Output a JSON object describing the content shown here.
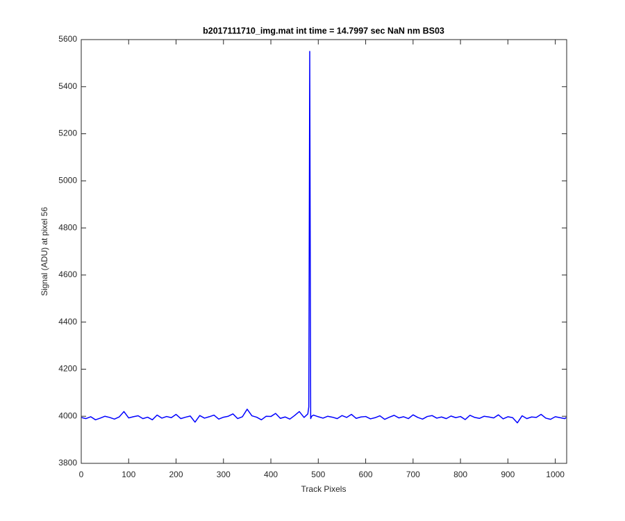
{
  "chart_data": {
    "type": "line",
    "title": "b2017111710_img.mat int time = 14.7997 sec  NaN nm BS03",
    "x_label": "Track Pixels",
    "y_label": "Signal (ADU) at pixel 56",
    "x": [
      0,
      10,
      20,
      30,
      40,
      50,
      60,
      70,
      80,
      90,
      100,
      110,
      120,
      130,
      140,
      150,
      160,
      170,
      180,
      190,
      200,
      210,
      220,
      230,
      240,
      250,
      260,
      270,
      280,
      290,
      300,
      310,
      320,
      330,
      340,
      350,
      360,
      370,
      380,
      390,
      400,
      410,
      420,
      430,
      440,
      450,
      460,
      470,
      478,
      480,
      482,
      484,
      486,
      490,
      500,
      510,
      520,
      530,
      540,
      550,
      560,
      570,
      580,
      590,
      600,
      610,
      620,
      630,
      640,
      650,
      660,
      670,
      680,
      690,
      700,
      710,
      720,
      730,
      740,
      750,
      760,
      770,
      780,
      790,
      800,
      810,
      820,
      830,
      840,
      850,
      860,
      870,
      880,
      890,
      900,
      910,
      920,
      930,
      940,
      950,
      960,
      970,
      980,
      990,
      1000,
      1010,
      1020,
      1023
    ],
    "series": [
      {
        "name": "Signal",
        "color": "#0000ff",
        "values": [
          3995,
          3990,
          3998,
          3985,
          3992,
          4000,
          3995,
          3988,
          3997,
          4020,
          3993,
          3998,
          4002,
          3990,
          3996,
          3985,
          4005,
          3992,
          3999,
          3994,
          4008,
          3990,
          3996,
          4001,
          3975,
          4003,
          3992,
          3998,
          4005,
          3988,
          3996,
          4000,
          4010,
          3990,
          3998,
          4030,
          4002,
          3996,
          3985,
          4000,
          3999,
          4012,
          3991,
          3997,
          3988,
          4003,
          4020,
          3995,
          4010,
          4040,
          5550,
          3990,
          4000,
          4005,
          3998,
          3992,
          4000,
          3996,
          3990,
          4003,
          3995,
          4008,
          3991,
          3997,
          3999,
          3989,
          3994,
          4002,
          3987,
          3996,
          4004,
          3993,
          3998,
          3990,
          4006,
          3995,
          3988,
          3999,
          4003,
          3992,
          3997,
          3990,
          4001,
          3994,
          3999,
          3986,
          4004,
          3995,
          3991,
          4000,
          3997,
          3993,
          4006,
          3989,
          3998,
          3994,
          3972,
          4002,
          3990,
          3997,
          3995,
          4008,
          3992,
          3987,
          3998,
          3994,
          3990,
          3995
        ]
      }
    ],
    "xlim": [
      0,
      1024
    ],
    "xticks": [
      0,
      100,
      200,
      300,
      400,
      500,
      600,
      700,
      800,
      900,
      1000
    ],
    "ylim": [
      3800,
      5600
    ],
    "yticks": [
      3800,
      4000,
      4200,
      4400,
      4600,
      4800,
      5000,
      5200,
      5400,
      5600
    ],
    "grid": false
  }
}
